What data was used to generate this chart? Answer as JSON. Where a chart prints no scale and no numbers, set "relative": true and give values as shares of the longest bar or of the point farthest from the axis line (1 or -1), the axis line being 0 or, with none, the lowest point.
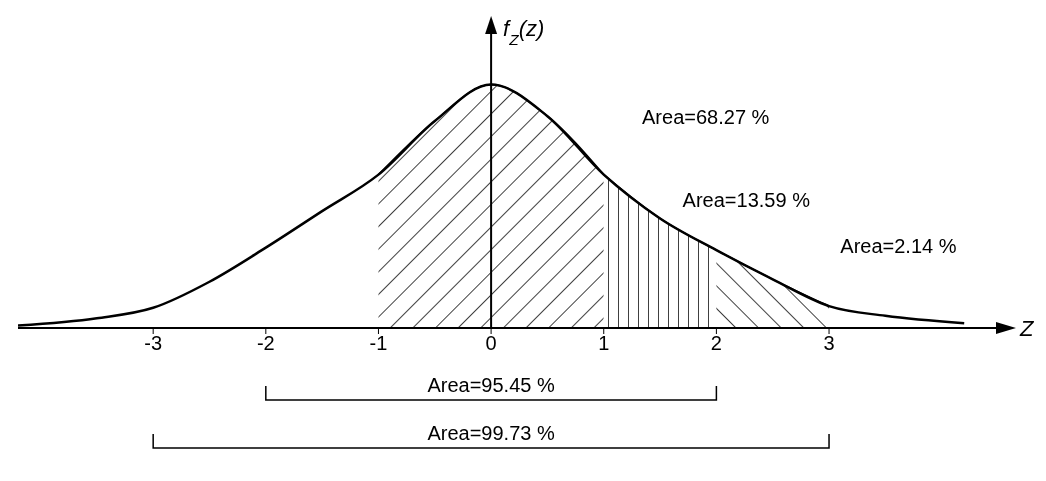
{
  "chart_data": {
    "type": "line",
    "ylabel": "f$_{Z}$(z)",
    "xlabel": "Z",
    "relative": true,
    "xlim": [
      -4.2,
      4.5
    ],
    "xticks": [
      -3,
      -2,
      -1,
      0,
      1,
      2,
      3
    ],
    "tick_labels": "x",
    "marker": "none",
    "line_style": "solid",
    "series": [
      {
        "color": "#000000",
        "x": [
          -4.2,
          -3.5,
          -3,
          -2.5,
          -2,
          -1.5,
          -1,
          -0.5,
          0,
          0.5,
          1,
          1.5,
          2,
          2.5,
          3,
          3.5,
          4.2
        ],
        "values": [
          0.01,
          0.04,
          0.083,
          0.19,
          0.33,
          0.48,
          0.63,
          0.85,
          1,
          0.87,
          0.63,
          0.45,
          0.32,
          0.2,
          0.09,
          0.05,
          0.02
        ]
      },
      {
        "type": "area",
        "color": "#000000",
        "x": [
          -1,
          -0.5,
          0,
          0.5,
          1
        ],
        "values": [
          0.63,
          0.85,
          1,
          0.87,
          0.63
        ]
      },
      {
        "type": "area",
        "color": "#000000",
        "x": [
          1,
          1.5,
          2
        ],
        "values": [
          0.63,
          0.45,
          0.32
        ]
      },
      {
        "type": "area",
        "color": "#000000",
        "x": [
          2,
          2.5,
          3
        ],
        "values": [
          0.32,
          0.2,
          0.09
        ]
      }
    ],
    "annotations": [
      "Area=68.27 %",
      "Area=13.59 %",
      "Area=2.14 %",
      "Area=95.45 %",
      "Area=99.73 %"
    ]
  }
}
